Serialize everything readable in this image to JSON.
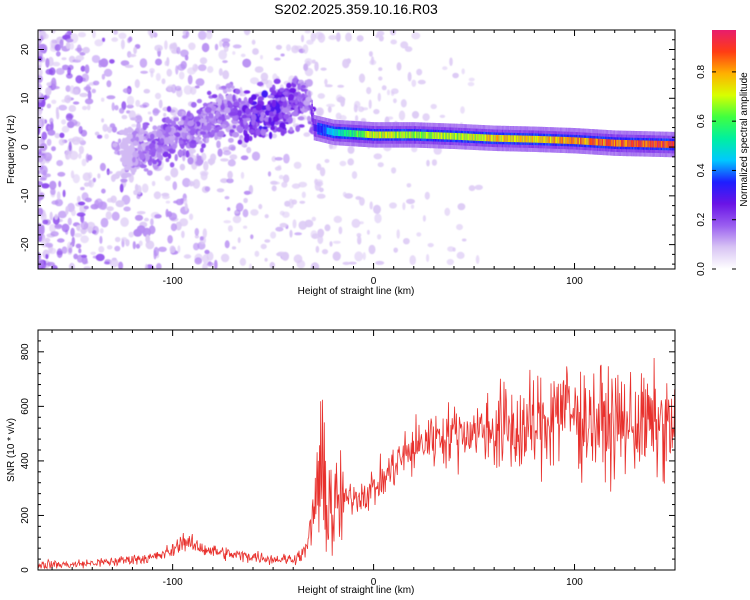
{
  "title": "S202.2025.359.10.16.R03",
  "colors": {
    "snr_line": "#e8302c",
    "spectrogram_palette": [
      "#ffffff",
      "#d8c4f4",
      "#9a5ef0",
      "#6a14e6",
      "#1e1eff",
      "#00c8ff",
      "#00f0a0",
      "#40ff40",
      "#d8ff00",
      "#ffb000",
      "#ff3c14",
      "#e81c6c"
    ]
  },
  "chart_data": [
    {
      "type": "heatmap",
      "title": "S202.2025.359.10.16.R03",
      "xlabel": "Height of straight line (km)",
      "ylabel": "Frequency (Hz)",
      "xlim": [
        -167,
        150
      ],
      "ylim": [
        -25,
        24
      ],
      "x_ticks": [
        -100,
        0,
        100
      ],
      "y_ticks": [
        -20,
        -10,
        0,
        10,
        20
      ],
      "grid": false,
      "colorbar": {
        "label": "Normalized spectral amplitude",
        "range": [
          0,
          0.97
        ],
        "ticks": [
          0.0,
          0.2,
          0.4,
          0.6,
          0.8
        ]
      },
      "ridge": [
        {
          "x": -120,
          "freq": -1,
          "amp": 0.15
        },
        {
          "x": -110,
          "freq": 0,
          "amp": 0.2
        },
        {
          "x": -100,
          "freq": 2,
          "amp": 0.22
        },
        {
          "x": -90,
          "freq": 4,
          "amp": 0.2
        },
        {
          "x": -80,
          "freq": 6,
          "amp": 0.2
        },
        {
          "x": -70,
          "freq": 8,
          "amp": 0.2
        },
        {
          "x": -60,
          "freq": 6,
          "amp": 0.3
        },
        {
          "x": -50,
          "freq": 7,
          "amp": 0.3
        },
        {
          "x": -40,
          "freq": 9,
          "amp": 0.25
        },
        {
          "x": -32,
          "freq": 10,
          "amp": 0.2
        },
        {
          "x": -30,
          "freq": 4,
          "amp": 0.3
        },
        {
          "x": -20,
          "freq": 3,
          "amp": 0.5
        },
        {
          "x": 0,
          "freq": 2.5,
          "amp": 0.75
        },
        {
          "x": 20,
          "freq": 2.5,
          "amp": 0.7
        },
        {
          "x": 40,
          "freq": 2.2,
          "amp": 0.7
        },
        {
          "x": 60,
          "freq": 1.8,
          "amp": 0.8
        },
        {
          "x": 80,
          "freq": 1.6,
          "amp": 0.8
        },
        {
          "x": 100,
          "freq": 1.3,
          "amp": 0.85
        },
        {
          "x": 120,
          "freq": 0.8,
          "amp": 0.9
        },
        {
          "x": 150,
          "freq": 0.5,
          "amp": 0.95
        }
      ]
    },
    {
      "type": "line",
      "xlabel": "Height of straight line (km)",
      "ylabel": "SNR (10 * v/v)",
      "xlim": [
        -167,
        150
      ],
      "ylim": [
        0,
        880
      ],
      "x_ticks": [
        -100,
        0,
        100
      ],
      "y_ticks": [
        0,
        200,
        400,
        600,
        800
      ],
      "grid": false,
      "series": [
        {
          "x": [
            -167,
            -150,
            -140,
            -130,
            -120,
            -110,
            -100,
            -95,
            -90,
            -85,
            -80,
            -70,
            -60,
            -50,
            -40,
            -35,
            -32,
            -30,
            -28,
            -25,
            -22,
            -20,
            -18,
            -15,
            -10,
            -5,
            0,
            5,
            10,
            15,
            20,
            25,
            30,
            40,
            50,
            60,
            70,
            80,
            85,
            90,
            95,
            100,
            110,
            120,
            130,
            140,
            150
          ],
          "values": [
            20,
            20,
            25,
            30,
            40,
            45,
            70,
            110,
            90,
            80,
            70,
            55,
            50,
            40,
            40,
            60,
            110,
            200,
            330,
            300,
            260,
            210,
            230,
            250,
            270,
            280,
            300,
            330,
            380,
            420,
            440,
            470,
            490,
            500,
            510,
            520,
            510,
            520,
            540,
            590,
            600,
            560,
            550,
            530,
            540,
            530,
            520
          ]
        }
      ]
    }
  ]
}
